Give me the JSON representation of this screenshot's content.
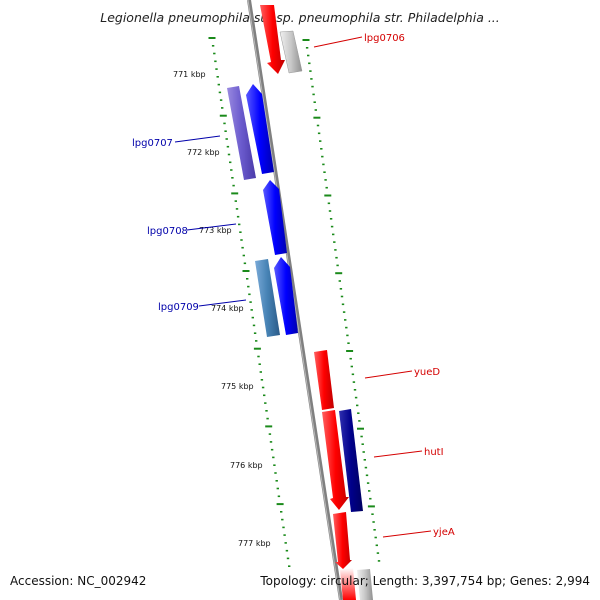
{
  "header": {
    "title": "Legionella pneumophila subsp. pneumophila str. Philadelphia ..."
  },
  "footer": {
    "accession": "Accession: NC_002942",
    "topology": "Topology: circular; Length: 3,397,754 bp; Genes: 2,994"
  },
  "scale": {
    "kbp_labels": [
      "771 kbp",
      "772 kbp",
      "773 kbp",
      "774 kbp",
      "775 kbp",
      "776 kbp",
      "777 kbp"
    ]
  },
  "genes": {
    "lpg0706": {
      "label": "lpg0706",
      "color": "#d40000"
    },
    "lpg0707": {
      "label": "lpg0707",
      "color": "#0000aa"
    },
    "lpg0708": {
      "label": "lpg0708",
      "color": "#0000aa"
    },
    "lpg0709": {
      "label": "lpg0709",
      "color": "#0000aa"
    },
    "yueD": {
      "label": "yueD",
      "color": "#d40000"
    },
    "hutI": {
      "label": "hutI",
      "color": "#d40000"
    },
    "yjeA": {
      "label": "yjeA",
      "color": "#d40000"
    }
  },
  "colors": {
    "backbone": "#808080",
    "tick": "#1a8a1a",
    "forward_gene": "#ff0000",
    "reverse_gene": "#0000ff",
    "cog_purple": "#6a5acd",
    "cog_steel": "#4682b4",
    "cog_navy": "#00008b",
    "cog_grey": "#b0b0b0"
  }
}
